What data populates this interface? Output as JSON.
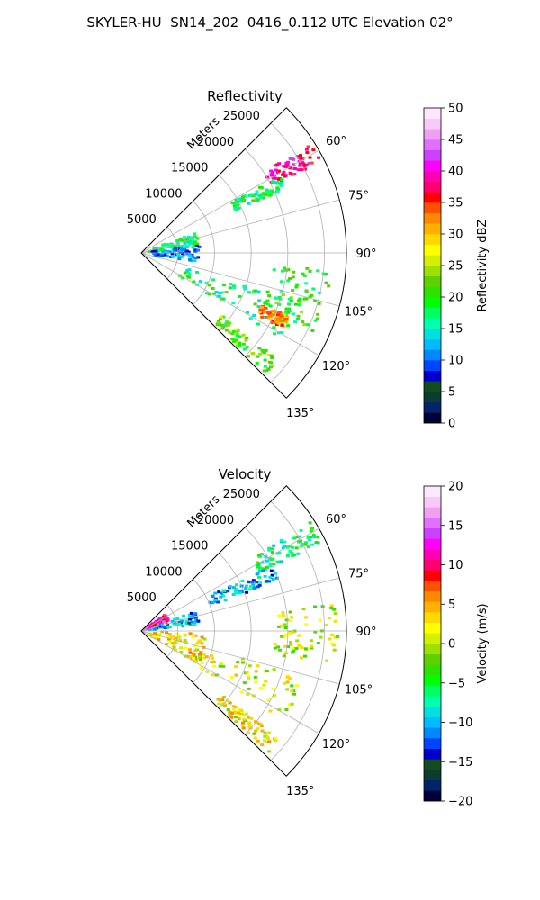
{
  "figure": {
    "suptitle": "SKYLER-HU  SN14_202  0416_0.112 UTC Elevation 02°"
  },
  "chart_data": [
    {
      "type": "heatmap",
      "projection": "polar-sector",
      "title": "Reflectivity",
      "radial_label": "Meters",
      "radial_ticks": [
        "5000",
        "10000",
        "15000",
        "20000",
        "25000"
      ],
      "radial_tick_values": [
        5000,
        10000,
        15000,
        20000,
        25000
      ],
      "radial_max": 28000,
      "angle_ticks": [
        "60°",
        "75°",
        "90°",
        "105°",
        "120°",
        "135°"
      ],
      "angle_tick_values": [
        60,
        75,
        90,
        105,
        120,
        135
      ],
      "sector": [
        45,
        135
      ],
      "colorbar": {
        "label": "Reflectivity dBZ",
        "range": [
          0,
          50
        ],
        "ticks": [
          "0",
          "5",
          "10",
          "15",
          "20",
          "25",
          "30",
          "35",
          "40",
          "45",
          "50"
        ],
        "colors": [
          "#00003a",
          "#04246a",
          "#0a3d30",
          "#124c1f",
          "#0000cc",
          "#0044ff",
          "#0088ff",
          "#00bbff",
          "#00e0e0",
          "#00ffb0",
          "#00ff60",
          "#00ff00",
          "#30e000",
          "#60d000",
          "#9ee000",
          "#d4f000",
          "#ffff00",
          "#ffd800",
          "#ffb000",
          "#ff8800",
          "#ff5000",
          "#ff0000",
          "#ff0070",
          "#ff00b0",
          "#ff00ff",
          "#cc40ff",
          "#e070ff",
          "#f0a0f0",
          "#f8c8f8",
          "#fce8fc"
        ]
      },
      "echo_regions": [
        {
          "az_start": 57,
          "az_end": 63,
          "r_start": 20000,
          "r_end": 27500,
          "value": 38
        },
        {
          "az_start": 61,
          "az_end": 66,
          "r_start": 14000,
          "r_end": 22000,
          "value": 18
        },
        {
          "az_start": 70,
          "az_end": 82,
          "r_start": 1000,
          "r_end": 8000,
          "value": 17
        },
        {
          "az_start": 82,
          "az_end": 100,
          "r_start": 1500,
          "r_end": 8500,
          "value": 11
        },
        {
          "az_start": 95,
          "az_end": 115,
          "r_start": 18000,
          "r_end": 26000,
          "value": 20
        },
        {
          "az_start": 108,
          "az_end": 122,
          "r_start": 6000,
          "r_end": 23000,
          "value": 18
        },
        {
          "az_start": 113,
          "az_end": 118,
          "r_start": 18000,
          "r_end": 22000,
          "value": 32
        },
        {
          "az_start": 128,
          "az_end": 134,
          "r_start": 14000,
          "r_end": 24000,
          "value": 22
        }
      ]
    },
    {
      "type": "heatmap",
      "projection": "polar-sector",
      "title": "Velocity",
      "radial_label": "Meters",
      "radial_ticks": [
        "5000",
        "10000",
        "15000",
        "20000",
        "25000"
      ],
      "radial_tick_values": [
        5000,
        10000,
        15000,
        20000,
        25000
      ],
      "radial_max": 28000,
      "angle_ticks": [
        "60°",
        "75°",
        "90°",
        "105°",
        "120°",
        "135°"
      ],
      "angle_tick_values": [
        60,
        75,
        90,
        105,
        120,
        135
      ],
      "sector": [
        45,
        135
      ],
      "colorbar": {
        "label": "Velocity (m/s)",
        "range": [
          -20,
          20
        ],
        "ticks": [
          "−20",
          "−15",
          "−10",
          "−5",
          "0",
          "5",
          "10",
          "15",
          "20"
        ],
        "colors": [
          "#00003a",
          "#04246a",
          "#0a3d30",
          "#124c1f",
          "#0000cc",
          "#0044ff",
          "#0088ff",
          "#00bbff",
          "#00e0e0",
          "#00ffb0",
          "#00ff60",
          "#00ff00",
          "#30e000",
          "#60d000",
          "#9ee000",
          "#d4f000",
          "#ffff00",
          "#ffd800",
          "#ffb000",
          "#ff8800",
          "#ff5000",
          "#ff0000",
          "#ff0070",
          "#ff00b0",
          "#ff00ff",
          "#cc40ff",
          "#e070ff",
          "#f0a0f0",
          "#f8c8f8",
          "#fce8fc"
        ]
      },
      "echo_regions": [
        {
          "az_start": 57,
          "az_end": 64,
          "r_start": 18000,
          "r_end": 27500,
          "value": -6
        },
        {
          "az_start": 63,
          "az_end": 70,
          "r_start": 10000,
          "r_end": 20000,
          "value": -10
        },
        {
          "az_start": 70,
          "az_end": 84,
          "r_start": 1000,
          "r_end": 8000,
          "value": -11
        },
        {
          "az_start": 56,
          "az_end": 70,
          "r_start": 500,
          "r_end": 4000,
          "value": 12
        },
        {
          "az_start": 92,
          "az_end": 120,
          "r_start": 1000,
          "r_end": 9000,
          "value": 3
        },
        {
          "az_start": 105,
          "az_end": 122,
          "r_start": 8000,
          "r_end": 23000,
          "value": 1
        },
        {
          "az_start": 82,
          "az_end": 100,
          "r_start": 18000,
          "r_end": 27000,
          "value": 0
        },
        {
          "az_start": 128,
          "az_end": 134,
          "r_start": 14000,
          "r_end": 24000,
          "value": 2
        }
      ]
    }
  ]
}
